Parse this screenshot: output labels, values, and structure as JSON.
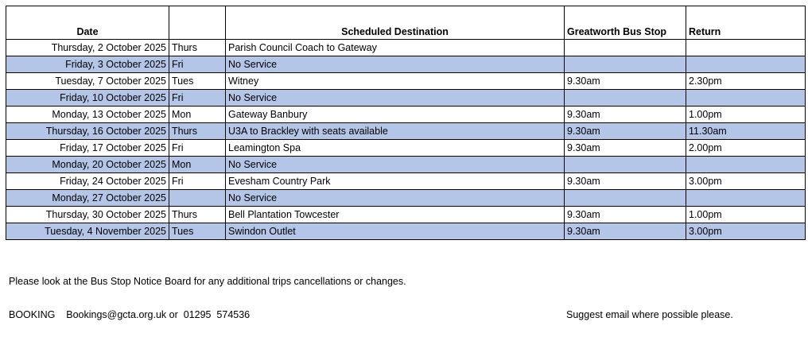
{
  "table": {
    "headers": [
      "Date",
      "",
      "Scheduled Destination",
      "Greatworth Bus Stop",
      "Return"
    ],
    "rows": [
      {
        "date": "Thursday, 2 October 2025",
        "day": "Thurs",
        "destination": "Parish Council Coach to Gateway",
        "depart": "",
        "return": "",
        "shaded": false
      },
      {
        "date": "Friday, 3 October 2025",
        "day": "Fri",
        "destination": "No Service",
        "depart": "",
        "return": "",
        "shaded": true
      },
      {
        "date": "Tuesday, 7 October 2025",
        "day": "Tues",
        "destination": "Witney",
        "depart": "9.30am",
        "return": "2.30pm",
        "shaded": false
      },
      {
        "date": "Friday, 10 October 2025",
        "day": "Fri",
        "destination": "No Service",
        "depart": "",
        "return": "",
        "shaded": true
      },
      {
        "date": "Monday, 13 October 2025",
        "day": "Mon",
        "destination": "Gateway Banbury",
        "depart": "9.30am",
        "return": "1.00pm",
        "shaded": false
      },
      {
        "date": "Thursday, 16 October 2025",
        "day": "Thurs",
        "destination": "U3A to Brackley with seats available",
        "depart": "9.30am",
        "return": "11.30am",
        "shaded": true
      },
      {
        "date": "Friday, 17 October 2025",
        "day": "Fri",
        "destination": "Leamington Spa",
        "depart": "9.30am",
        "return": "2.00pm",
        "shaded": false
      },
      {
        "date": "Monday, 20 October 2025",
        "day": "Mon",
        "destination": "No Service",
        "depart": "",
        "return": "",
        "shaded": true
      },
      {
        "date": "Friday, 24 October 2025",
        "day": "Fri",
        "destination": "Evesham Country Park",
        "depart": "9.30am",
        "return": "3.00pm",
        "shaded": false
      },
      {
        "date": "Monday, 27 October 2025",
        "day": "",
        "destination": "No Service",
        "depart": "",
        "return": "",
        "shaded": true
      },
      {
        "date": "Thursday, 30 October 2025",
        "day": "Thurs",
        "destination": "Bell Plantation Towcester",
        "depart": "9.30am",
        "return": "1.00pm",
        "shaded": false
      },
      {
        "date": "Tuesday, 4 November 2025",
        "day": "Tues",
        "destination": "Swindon Outlet",
        "depart": "9.30am",
        "return": "3.00pm",
        "shaded": true
      }
    ]
  },
  "colors": {
    "shade": "#b4c6e7"
  },
  "footer": {
    "note": "Please look at the Bus Stop Notice Board for any additional trips cancellations or changes.",
    "booking": "BOOKING    Bookings@gcta.org.uk or  01295  574536",
    "suggest": "Suggest email where possible please."
  }
}
